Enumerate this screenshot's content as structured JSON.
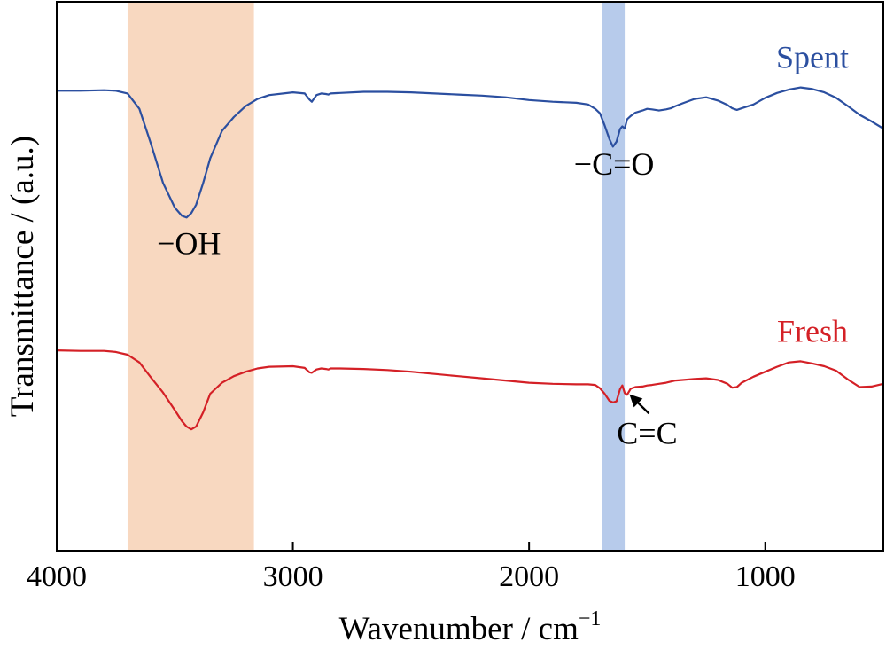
{
  "chart_data": {
    "type": "line",
    "xlabel": "Wavenumber / cm",
    "xlabel_sup": "−1",
    "ylabel": "Transmittance / (a.u.)",
    "xlim": [
      4000,
      500
    ],
    "x_reversed": true,
    "ylim": [
      0,
      100
    ],
    "x_ticks": [
      4000,
      3000,
      2000,
      1000
    ],
    "x_tick_labels": [
      "4000",
      "3000",
      "2000",
      "1000"
    ],
    "y_ticks_shown": false,
    "grid": false,
    "highlight_bands": [
      {
        "x_range": [
          3700,
          3165
        ],
        "color": "#f8d8c0"
      },
      {
        "x_range": [
          1690,
          1595
        ],
        "color": "#b7cbeb"
      }
    ],
    "series": [
      {
        "name": "Spent",
        "color": "#2b4fa0",
        "x": [
          4000,
          3900,
          3800,
          3750,
          3700,
          3650,
          3600,
          3550,
          3500,
          3470,
          3450,
          3430,
          3410,
          3380,
          3350,
          3320,
          3300,
          3250,
          3200,
          3150,
          3100,
          3000,
          2950,
          2930,
          2920,
          2900,
          2880,
          2860,
          2850,
          2840,
          2800,
          2700,
          2600,
          2500,
          2400,
          2300,
          2200,
          2100,
          2000,
          1900,
          1800,
          1750,
          1720,
          1700,
          1680,
          1660,
          1645,
          1630,
          1615,
          1605,
          1595,
          1585,
          1570,
          1550,
          1520,
          1500,
          1480,
          1450,
          1420,
          1400,
          1380,
          1350,
          1300,
          1250,
          1200,
          1160,
          1140,
          1120,
          1100,
          1050,
          1000,
          950,
          900,
          850,
          800,
          750,
          700,
          650,
          600,
          550,
          500
        ],
        "y": [
          83.8,
          83.8,
          83.9,
          83.8,
          83.3,
          80.5,
          74,
          67,
          62.5,
          61,
          60.7,
          61.5,
          63,
          67,
          71.5,
          74.5,
          76.5,
          79,
          81,
          82.3,
          83,
          83.5,
          83.3,
          82.2,
          81.8,
          83,
          83.3,
          83.2,
          83.1,
          83.3,
          83.4,
          83.6,
          83.6,
          83.5,
          83.3,
          83.1,
          82.9,
          82.6,
          82.1,
          81.8,
          81.6,
          81.3,
          80.5,
          79.7,
          77.5,
          75,
          73.6,
          74.5,
          76.8,
          77.3,
          76.9,
          78.6,
          79.2,
          79.8,
          80.2,
          80.5,
          80.4,
          80.2,
          80.4,
          80.6,
          81,
          81.5,
          82.3,
          82.6,
          82,
          81.2,
          80.6,
          80.3,
          80.6,
          81.3,
          82.5,
          83.4,
          84,
          84.4,
          84.1,
          83.5,
          82.5,
          81,
          79.4,
          78.2,
          76.9
        ]
      },
      {
        "name": "Fresh",
        "color": "#d42026",
        "x": [
          4000,
          3900,
          3800,
          3750,
          3700,
          3650,
          3600,
          3550,
          3500,
          3470,
          3450,
          3430,
          3410,
          3380,
          3350,
          3320,
          3300,
          3250,
          3200,
          3150,
          3100,
          3000,
          2950,
          2930,
          2920,
          2900,
          2880,
          2860,
          2850,
          2840,
          2800,
          2700,
          2600,
          2500,
          2400,
          2300,
          2200,
          2100,
          2000,
          1900,
          1800,
          1750,
          1720,
          1700,
          1680,
          1660,
          1645,
          1630,
          1615,
          1605,
          1595,
          1585,
          1570,
          1550,
          1520,
          1500,
          1480,
          1450,
          1420,
          1400,
          1380,
          1350,
          1300,
          1250,
          1200,
          1160,
          1140,
          1120,
          1100,
          1050,
          1000,
          950,
          900,
          850,
          800,
          750,
          700,
          650,
          600,
          550,
          500
        ],
        "y": [
          36.5,
          36.4,
          36.4,
          36.2,
          35.7,
          34.3,
          31.5,
          28.8,
          25.6,
          23.6,
          22.6,
          22.1,
          22.6,
          25.2,
          28.6,
          29.8,
          30.6,
          31.8,
          32.6,
          33.2,
          33.5,
          33.6,
          33.3,
          32.5,
          32.4,
          33,
          33.2,
          33.1,
          33,
          33.2,
          33.2,
          33.1,
          32.9,
          32.6,
          32.2,
          31.8,
          31.4,
          31,
          30.6,
          30.4,
          30.3,
          30.3,
          30.2,
          29.6,
          28.6,
          27.3,
          27,
          27.2,
          29.4,
          30.1,
          28.7,
          28.4,
          29.5,
          29.8,
          29.9,
          30.1,
          30.2,
          30.4,
          30.6,
          30.8,
          31,
          31.1,
          31.3,
          31.4,
          31.1,
          30.4,
          29.7,
          29.8,
          30.6,
          31.7,
          32.6,
          33.5,
          34.3,
          34.5,
          34.1,
          33.6,
          32.8,
          31.2,
          29.8,
          29.9,
          30.4
        ]
      }
    ],
    "series_labels": [
      {
        "text": "Spent",
        "color": "#2b4fa0"
      },
      {
        "text": "Fresh",
        "color": "#d42026"
      }
    ],
    "annotations": [
      {
        "text": "−OH",
        "x": 3440,
        "y": 54
      },
      {
        "text": "−C=O",
        "x": 1640,
        "y": 68.5
      },
      {
        "text": "C=C",
        "x": 1500,
        "y": 19.5,
        "arrow_to_x": 1575,
        "arrow_to_y": 28.5
      }
    ]
  }
}
